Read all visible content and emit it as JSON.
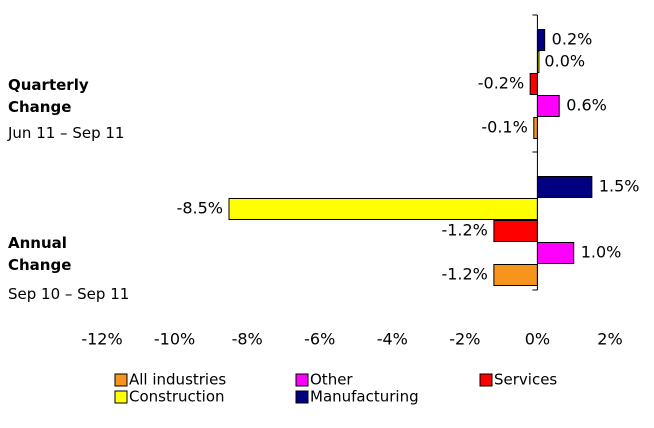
{
  "chart_data": {
    "type": "bar",
    "orientation": "horizontal",
    "categories": [
      "Quarterly Change",
      "Annual Change"
    ],
    "periods": [
      "Jun 11 – Sep 11",
      "Sep 10 – Sep 11"
    ],
    "series": [
      {
        "name": "All industries",
        "color": "#f7941d",
        "values": [
          -0.1,
          -1.2
        ],
        "value_labels": [
          "-0.1%",
          "-1.2%"
        ]
      },
      {
        "name": "Other",
        "color": "#ff00ff",
        "values": [
          0.6,
          1.0
        ],
        "value_labels": [
          "0.6%",
          "1.0%"
        ]
      },
      {
        "name": "Services",
        "color": "#ff0000",
        "values": [
          -0.2,
          -1.2
        ],
        "value_labels": [
          "-0.2%",
          "-1.2%"
        ]
      },
      {
        "name": "Construction",
        "color": "#ffff00",
        "values": [
          0.0,
          -8.5
        ],
        "value_labels": [
          "0.0%",
          "-8.5%"
        ]
      },
      {
        "name": "Manufacturing",
        "color": "#000080",
        "values": [
          0.2,
          1.5
        ],
        "value_labels": [
          "0.2%",
          "1.5%"
        ]
      }
    ],
    "xlim": [
      -12,
      2
    ],
    "xticks": [
      {
        "value": -12,
        "label": "-12%"
      },
      {
        "value": -10,
        "label": "-10%"
      },
      {
        "value": -8,
        "label": "-8%"
      },
      {
        "value": -6,
        "label": "-6%"
      },
      {
        "value": -4,
        "label": "-4%"
      },
      {
        "value": -2,
        "label": "-2%"
      },
      {
        "value": 0,
        "label": "0%"
      },
      {
        "value": 2,
        "label": "2%"
      }
    ],
    "legend": "bottom"
  }
}
